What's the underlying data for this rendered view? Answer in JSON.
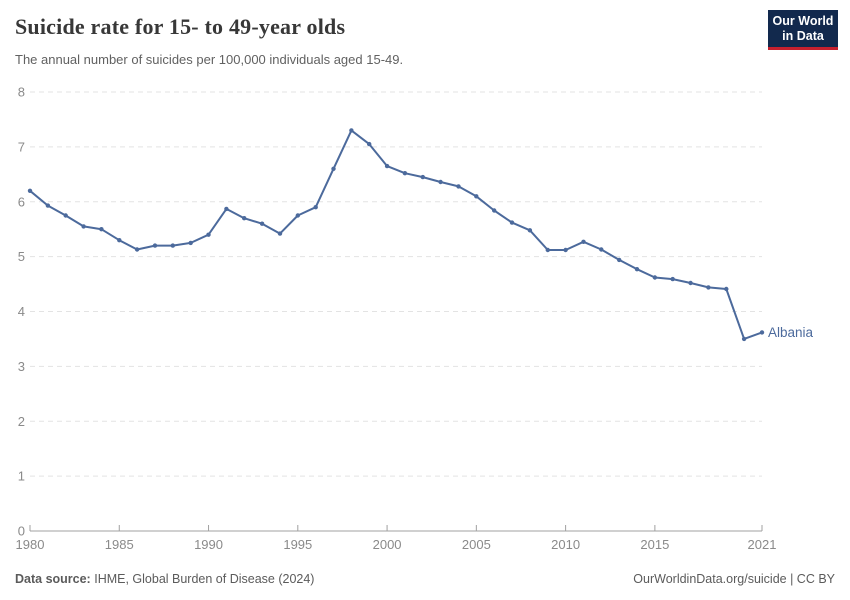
{
  "header": {
    "title": "Suicide rate for 15- to 49-year olds",
    "subtitle": "The annual number of suicides per 100,000 individuals aged 15-49."
  },
  "logo": {
    "line1": "Our World",
    "line2": "in Data",
    "bg_color": "#12294d",
    "accent_color": "#c7202e"
  },
  "chart_data": {
    "type": "line",
    "title": "Suicide rate for 15- to 49-year olds",
    "xlabel": "",
    "ylabel": "",
    "xlim": [
      1980,
      2021
    ],
    "ylim": [
      0,
      8
    ],
    "yticks": [
      0,
      1,
      2,
      3,
      4,
      5,
      6,
      7,
      8
    ],
    "xticks": [
      1980,
      1985,
      1990,
      1995,
      2000,
      2005,
      2010,
      2015,
      2021
    ],
    "grid": "horizontal-dashed",
    "gridline_color": "#e3e3e3",
    "axis_color": "#a0a0a0",
    "tick_label_color": "#8a8a8a",
    "legend_position": "end-of-line-label",
    "series": [
      {
        "name": "Albania",
        "color": "#4C6A9C",
        "x": [
          1980,
          1981,
          1982,
          1983,
          1984,
          1985,
          1986,
          1987,
          1988,
          1989,
          1990,
          1991,
          1992,
          1993,
          1994,
          1995,
          1996,
          1997,
          1998,
          1999,
          2000,
          2001,
          2002,
          2003,
          2004,
          2005,
          2006,
          2007,
          2008,
          2009,
          2010,
          2011,
          2012,
          2013,
          2014,
          2015,
          2016,
          2017,
          2018,
          2019,
          2020,
          2021
        ],
        "values": [
          6.2,
          5.93,
          5.75,
          5.55,
          5.5,
          5.3,
          5.13,
          5.2,
          5.2,
          5.25,
          5.4,
          5.87,
          5.7,
          5.6,
          5.42,
          5.75,
          5.9,
          6.6,
          7.3,
          7.05,
          6.65,
          6.52,
          6.45,
          6.36,
          6.28,
          6.1,
          5.84,
          5.62,
          5.48,
          5.12,
          5.12,
          5.27,
          5.13,
          4.94,
          4.77,
          4.62,
          4.59,
          4.52,
          4.44,
          4.41,
          3.5,
          3.62
        ]
      }
    ]
  },
  "footer": {
    "source_label": "Data source:",
    "source_text": "IHME, Global Burden of Disease (2024)",
    "right_text": "OurWorldinData.org/suicide | CC BY"
  }
}
